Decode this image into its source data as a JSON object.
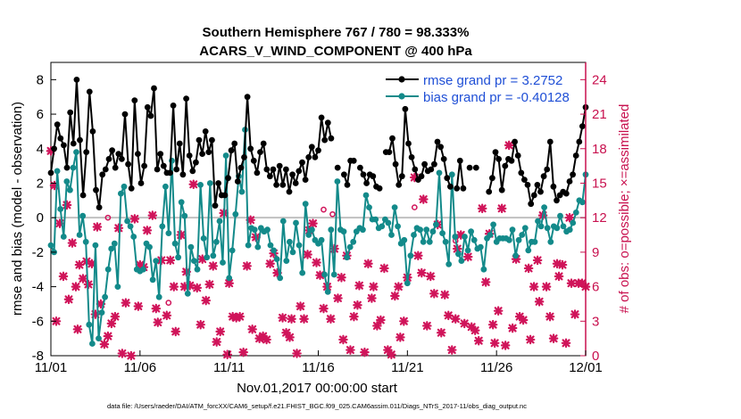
{
  "chart_data": {
    "type": "line",
    "title": "Southern Hemisphere 767 / 780 = 98.333%",
    "subtitle": "ACARS_V_WIND_COMPONENT @ 400 hPa",
    "xlabel": "Nov.01,2017 00:00:00 start",
    "ylabel": "rmse and bias (model - observation)",
    "y2label": "# of obs: o=possible; ×=assimilated",
    "footnote": "data file: /Users/raeder/DAI/ATM_forcXX/CAM6_setup/f.e21.FHIST_BGC.f09_025.CAM6assim.011/Diags_NTrS_2017-11/obs_diag_output.nc",
    "xlim": [
      0,
      30
    ],
    "ylim": [
      -8,
      9
    ],
    "y2lim": [
      0,
      25.5
    ],
    "x_ticks": [
      0,
      5,
      10,
      15,
      20,
      25,
      30
    ],
    "x_tick_labels": [
      "11/01",
      "11/06",
      "11/11",
      "11/16",
      "11/21",
      "11/26",
      "12/01"
    ],
    "y_ticks": [
      "-8",
      "-6",
      "-4",
      "-2",
      "0",
      "2",
      "4",
      "6",
      "8"
    ],
    "y2_ticks": [
      "0",
      "3",
      "6",
      "9",
      "12",
      "15",
      "18",
      "21",
      "24"
    ],
    "colors": {
      "rmse": "#000000",
      "bias": "#138a8a",
      "obs": "#d0145a",
      "zero_line": "#c0c0c0",
      "right_axis": "#c8104e",
      "legend_text": "#1f4fd6"
    },
    "series": [
      {
        "name": "rmse grand pr = 3.2752",
        "values": [
          2.6,
          4.0,
          5.4,
          4.6,
          4.2,
          2.9,
          6.1,
          4.3,
          8.0,
          4.5,
          1.3,
          3.8,
          7.3,
          5.0,
          1.6,
          0.6,
          2.5,
          2.8,
          3.4,
          3.9,
          2.9,
          3.7,
          3.4,
          6.0,
          3.1,
          1.7,
          6.8,
          3.7,
          2.0,
          3.0,
          6.4,
          5.9,
          7.5,
          2.8,
          3.7,
          3.0,
          2.6,
          2.6,
          6.5,
          2.8,
          4.3,
          2.5,
          6.9,
          3.6,
          2.7,
          3.2,
          4.5,
          3.7,
          5.0,
          3.8,
          4.5,
          0.7,
          2.0,
          1.3,
          1.3,
          2.3,
          3.9,
          4.3,
          2.1,
          2.9,
          3.5,
          7.0,
          4.0,
          3.3,
          2.6,
          3.8,
          4.3,
          2.8,
          2.4,
          2.8,
          1.9,
          3.0,
          1.9,
          2.8,
          1.5,
          2.5,
          2.0,
          2.7,
          3.2,
          2.2,
          3.5,
          4.1,
          3.5,
          3.9,
          5.8,
          4.5,
          5.5,
          4.6,
          null,
          2.9,
          null,
          2.5,
          1.9,
          3.3,
          3.3,
          null,
          2.9,
          2.5,
          2.0,
          2.5,
          2.4,
          1.8,
          1.7,
          null,
          3.8,
          3.8,
          4.6,
          3.1,
          1.9,
          2.4,
          6.3,
          4.3,
          3.5,
          2.8,
          2.2,
          2.4,
          3.1,
          2.7,
          2.8,
          3.1,
          4.4,
          4.1,
          3.4,
          2.3,
          1.8,
          null,
          1.7,
          3.3,
          1.7,
          null,
          2.9,
          null,
          2.9,
          null,
          null,
          null,
          1.5,
          2.3,
          3.8,
          3.4,
          1.6,
          3.0,
          3.4,
          3.3,
          4.4,
          3.6,
          2.6,
          2.2,
          1.9,
          0.8,
          1.3,
          1.9,
          1.5,
          2.4,
          2.8,
          4.4,
          1.8,
          1.0,
          1.3,
          1.5,
          1.4,
          2.1,
          2.5,
          3.6,
          4.4,
          5.3,
          6.4
        ]
      },
      {
        "name": "bias grand pr = -0.40128",
        "values": [
          -1.6,
          -2.0,
          2.7,
          0.5,
          -1.1,
          2.1,
          1.6,
          2.9,
          3.8,
          -1.0,
          0.1,
          -1.4,
          -6.2,
          -7.3,
          -1.6,
          -7.0,
          -5.5,
          -4.6,
          -3.0,
          -1.8,
          -1.5,
          -4.0,
          1.4,
          1.8,
          -0.2,
          -0.5,
          -1.1,
          -3.0,
          -3.1,
          -3.0,
          -1.5,
          -1.7,
          -3.6,
          -2.5,
          -4.6,
          -0.5,
          1.8,
          -0.9,
          3.3,
          -1.5,
          -2.3,
          0.9,
          0.1,
          -4.4,
          -1.7,
          -2.5,
          -3.0,
          1.9,
          -1.2,
          -2.3,
          2.0,
          -2.2,
          -1.4,
          -0.2,
          -2.6,
          3.6,
          -3.5,
          -1.9,
          0.2,
          2.4,
          1.5,
          5.1,
          -1.6,
          -0.6,
          -0.7,
          -1.7,
          -0.6,
          -0.8,
          -0.7,
          -1.6,
          -1.9,
          -2.4,
          -3.5,
          -0.2,
          -2.5,
          -1.4,
          -2.0,
          -0.3,
          -1.6,
          -3.2,
          0.8,
          -1.0,
          -0.7,
          -1.3,
          -1.5,
          -1.3,
          -3.3,
          -4.3,
          -0.7,
          -3.3,
          2.1,
          -0.7,
          -0.8,
          -2.3,
          -1.7,
          -1.4,
          -0.8,
          -0.6,
          -0.7,
          1.3,
          0.6,
          -0.1,
          -0.1,
          -0.6,
          -0.5,
          -0.1,
          -0.3,
          -1.0,
          0.6,
          -0.5,
          -1.5,
          -1.3,
          -3.8,
          -2.2,
          -1.0,
          -0.6,
          -0.7,
          -1.4,
          -0.7,
          -1.4,
          -0.8,
          -0.4,
          2.6,
          -0.9,
          -1.4,
          -2.7,
          2.5,
          -1.1,
          -2.1,
          -2.5,
          -1.1,
          -1.9,
          -0.8,
          -1.3,
          -1.8,
          -1.7,
          -3.0,
          -1.2,
          -1.0,
          -0.4,
          -1.4,
          -1.2,
          -1.2,
          -1.2,
          -1.3,
          -0.7,
          -2.2,
          -1.3,
          -1.0,
          -0.6,
          -1.9,
          -1.4,
          -1.4,
          -0.2,
          -0.5,
          0.6,
          -0.6,
          -1.4,
          -0.5,
          -0.6,
          0.1,
          -0.5,
          -0.8,
          -0.7,
          -0.3,
          0.3,
          1.0,
          0.9,
          2.5
        ]
      }
    ],
    "obs_assimilated": [
      [
        0.0,
        17.8
      ],
      [
        0.2,
        14.8
      ],
      [
        0.3,
        3.0
      ],
      [
        0.5,
        11.5
      ],
      [
        0.7,
        6.9
      ],
      [
        0.9,
        13.1
      ],
      [
        1.0,
        4.9
      ],
      [
        1.2,
        9.8
      ],
      [
        1.4,
        6.0
      ],
      [
        1.5,
        2.3
      ],
      [
        1.6,
        7.9
      ],
      [
        1.8,
        6.7
      ],
      [
        2.0,
        8.2
      ],
      [
        2.1,
        6.2
      ],
      [
        2.3,
        8.0
      ],
      [
        2.5,
        3.6
      ],
      [
        2.6,
        11.2
      ],
      [
        2.8,
        4.5
      ],
      [
        3.0,
        1.0
      ],
      [
        3.2,
        1.7
      ],
      [
        3.4,
        2.8
      ],
      [
        3.6,
        3.4
      ],
      [
        3.8,
        11.1
      ],
      [
        4.0,
        0.2
      ],
      [
        4.2,
        4.6
      ],
      [
        4.5,
        0.0
      ],
      [
        4.7,
        11.9
      ],
      [
        4.9,
        4.3
      ],
      [
        5.0,
        7.9
      ],
      [
        5.2,
        7.7
      ],
      [
        5.4,
        10.9
      ],
      [
        5.7,
        12.2
      ],
      [
        5.9,
        4.1
      ],
      [
        6.0,
        2.9
      ],
      [
        6.2,
        8.3
      ],
      [
        6.5,
        3.5
      ],
      [
        6.7,
        8.3
      ],
      [
        6.9,
        6.0
      ],
      [
        7.0,
        2.1
      ],
      [
        7.3,
        10.5
      ],
      [
        7.5,
        6.0
      ],
      [
        7.6,
        7.3
      ],
      [
        7.8,
        6.1
      ],
      [
        8.0,
        14.9
      ],
      [
        8.2,
        5.9
      ],
      [
        8.4,
        2.7
      ],
      [
        8.5,
        8.4
      ],
      [
        8.7,
        4.8
      ],
      [
        8.9,
        6.2
      ],
      [
        9.1,
        7.8
      ],
      [
        9.3,
        1.2
      ],
      [
        9.5,
        2.1
      ],
      [
        9.7,
        12.4
      ],
      [
        9.9,
        0.1
      ],
      [
        10.0,
        6.3
      ],
      [
        10.2,
        3.4
      ],
      [
        10.4,
        3.3
      ],
      [
        10.6,
        3.4
      ],
      [
        10.8,
        0.3
      ],
      [
        11.0,
        7.8
      ],
      [
        11.2,
        11.8
      ],
      [
        11.3,
        2.3
      ],
      [
        11.5,
        10.3
      ],
      [
        11.7,
        1.5
      ],
      [
        11.9,
        1.7
      ],
      [
        12.1,
        1.4
      ],
      [
        12.3,
        8.0
      ],
      [
        12.5,
        8.9
      ],
      [
        12.7,
        7.2
      ],
      [
        13.0,
        3.3
      ],
      [
        13.2,
        2.0
      ],
      [
        13.4,
        1.6
      ],
      [
        13.5,
        3.2
      ],
      [
        13.8,
        0.2
      ],
      [
        14.0,
        4.3
      ],
      [
        14.2,
        3.2
      ],
      [
        14.4,
        8.8
      ],
      [
        14.5,
        10.9
      ],
      [
        14.7,
        11.5
      ],
      [
        14.9,
        8.1
      ],
      [
        15.1,
        7.0
      ],
      [
        15.3,
        4.1
      ],
      [
        15.5,
        6.0
      ],
      [
        15.7,
        3.2
      ],
      [
        15.9,
        9.3
      ],
      [
        16.1,
        5.0
      ],
      [
        16.3,
        6.8
      ],
      [
        16.4,
        1.4
      ],
      [
        16.6,
        8.7
      ],
      [
        16.8,
        0.5
      ],
      [
        17.0,
        3.4
      ],
      [
        17.2,
        4.4
      ],
      [
        17.3,
        6.1
      ],
      [
        17.6,
        0.3
      ],
      [
        17.8,
        8.0
      ],
      [
        18.0,
        5.0
      ],
      [
        18.1,
        6.0
      ],
      [
        18.3,
        2.6
      ],
      [
        18.5,
        3.1
      ],
      [
        18.7,
        7.6
      ],
      [
        18.9,
        0.5
      ],
      [
        19.1,
        0.1
      ],
      [
        19.3,
        5.2
      ],
      [
        19.5,
        6.0
      ],
      [
        19.6,
        1.6
      ],
      [
        19.8,
        3.0
      ],
      [
        20.0,
        6.8
      ],
      [
        20.4,
        15.5
      ],
      [
        20.6,
        8.7
      ],
      [
        20.8,
        7.2
      ],
      [
        20.9,
        13.6
      ],
      [
        21.1,
        2.6
      ],
      [
        21.3,
        6.9
      ],
      [
        21.5,
        5.4
      ],
      [
        21.7,
        11.4
      ],
      [
        21.9,
        2.0
      ],
      [
        22.1,
        5.3
      ],
      [
        22.3,
        3.5
      ],
      [
        22.5,
        0.5
      ],
      [
        22.7,
        3.2
      ],
      [
        22.8,
        9.3
      ],
      [
        23.0,
        10.5
      ],
      [
        23.2,
        2.8
      ],
      [
        23.4,
        8.6
      ],
      [
        23.6,
        2.5
      ],
      [
        23.8,
        2.2
      ],
      [
        24.0,
        1.3
      ],
      [
        24.2,
        12.8
      ],
      [
        24.4,
        6.4
      ],
      [
        24.6,
        10.6
      ],
      [
        24.8,
        2.7
      ],
      [
        24.9,
        1.1
      ],
      [
        25.1,
        3.9
      ],
      [
        25.3,
        12.8
      ],
      [
        25.5,
        0.9
      ],
      [
        25.7,
        18.3
      ],
      [
        25.9,
        2.4
      ],
      [
        26.1,
        8.4
      ],
      [
        26.3,
        3.4
      ],
      [
        26.5,
        3.1
      ],
      [
        26.8,
        7.6
      ],
      [
        26.9,
        1.4
      ],
      [
        27.1,
        6.0
      ],
      [
        27.3,
        8.3
      ],
      [
        27.4,
        4.7
      ],
      [
        27.6,
        12.2
      ],
      [
        27.8,
        6.0
      ],
      [
        28.0,
        3.4
      ],
      [
        28.2,
        1.5
      ],
      [
        28.4,
        8.0
      ],
      [
        28.5,
        6.9
      ],
      [
        28.7,
        7.9
      ],
      [
        28.9,
        1.1
      ],
      [
        29.1,
        12.0
      ],
      [
        29.2,
        6.3
      ],
      [
        29.4,
        3.6
      ],
      [
        29.6,
        6.3
      ],
      [
        29.8,
        6.3
      ],
      [
        30.0,
        6.0
      ]
    ],
    "obs_possible": [
      [
        3.2,
        12.0
      ],
      [
        6.6,
        4.6
      ],
      [
        15.3,
        12.7
      ],
      [
        15.8,
        12.3
      ],
      [
        20.4,
        12.9
      ],
      [
        22.7,
        10.0
      ]
    ],
    "legend_position": "top-right"
  }
}
